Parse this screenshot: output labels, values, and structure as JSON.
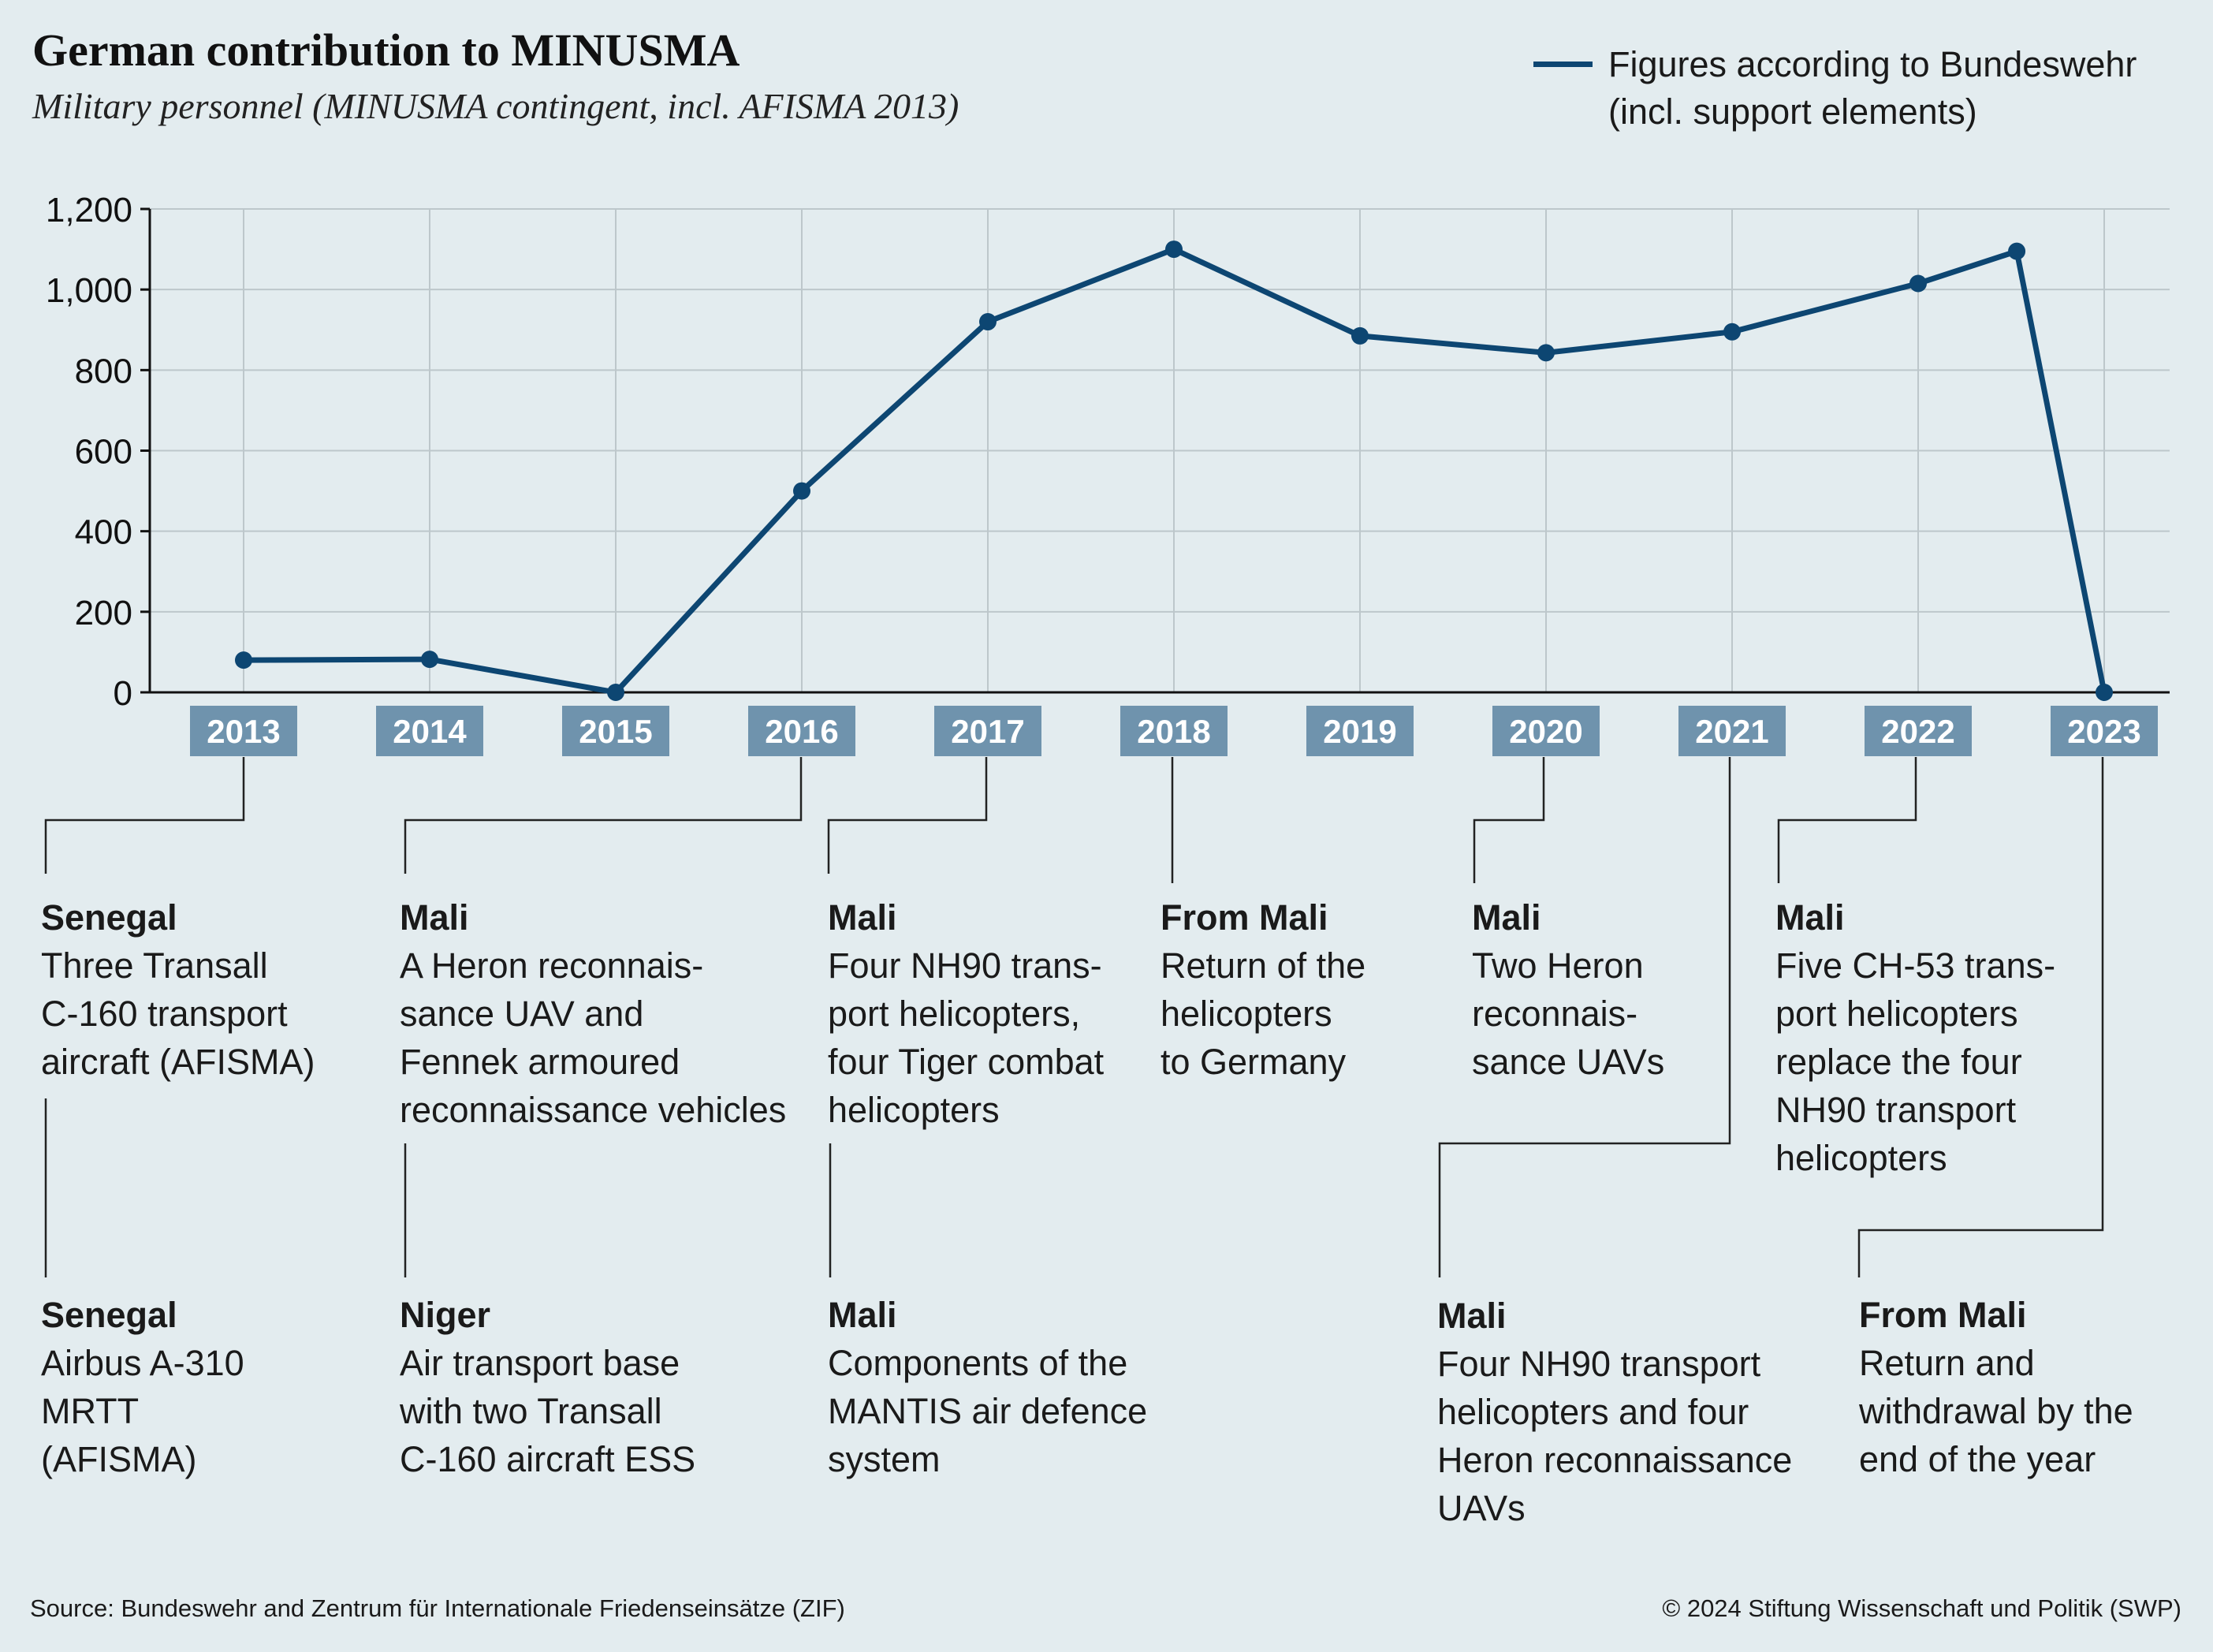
{
  "header": {
    "title": "German contribution to MINUSMA",
    "subtitle": "Military personnel (MINUSMA contingent, incl. AFISMA 2013)"
  },
  "legend": {
    "line1": "Figures according to Bundeswehr",
    "line2": "(incl. support elements)",
    "color": "#0d4672"
  },
  "chart_data": {
    "type": "line",
    "ylim": [
      0,
      1200
    ],
    "yticks": [
      "0",
      "200",
      "400",
      "600",
      "800",
      "1,000",
      "1,200"
    ],
    "ytick_values": [
      0,
      200,
      400,
      600,
      800,
      1000,
      1200
    ],
    "categories": [
      "2013",
      "2014",
      "2015",
      "2016",
      "2017",
      "2018",
      "2019",
      "2020",
      "2021",
      "2022",
      "2023"
    ],
    "grid": true,
    "series": [
      {
        "name": "Figures according to Bundeswehr (incl. support elements)",
        "color": "#0d4672",
        "points": [
          {
            "x": 2013.0,
            "y": 80
          },
          {
            "x": 2014.0,
            "y": 82
          },
          {
            "x": 2015.0,
            "y": 0
          },
          {
            "x": 2016.0,
            "y": 500
          },
          {
            "x": 2017.0,
            "y": 920
          },
          {
            "x": 2018.0,
            "y": 1100
          },
          {
            "x": 2019.0,
            "y": 885
          },
          {
            "x": 2020.0,
            "y": 843
          },
          {
            "x": 2021.0,
            "y": 895
          },
          {
            "x": 2022.0,
            "y": 1015
          },
          {
            "x": 2022.53,
            "y": 1095
          },
          {
            "x": 2023.0,
            "y": 0
          }
        ]
      }
    ]
  },
  "annotations": [
    {
      "head": "Senegal",
      "body": "Three Transall\nC-160 transport\naircraft (AFISMA)"
    },
    {
      "head": "Senegal",
      "body": "Airbus A-310\nMRTT\n(AFISMA)"
    },
    {
      "head": "Mali",
      "body": "A Heron reconnais-\nsance UAV and\nFennek armoured\nreconnaissance vehicles"
    },
    {
      "head": "Niger",
      "body": "Air transport base\nwith two Transall\nC-160 aircraft ESS"
    },
    {
      "head": "Mali",
      "body": "Four NH90 trans-\nport helicopters,\nfour Tiger combat\nhelicopters"
    },
    {
      "head": "Mali",
      "body": "Components of the\nMANTIS air defence\nsystem"
    },
    {
      "head": "From Mali",
      "body": "Return of the\nhelicopters\nto Germany"
    },
    {
      "head": "Mali",
      "body": "Two Heron\nreconnais-\nsance UAVs"
    },
    {
      "head": "Mali",
      "body": "Four NH90 transport\nhelicopters and four\nHeron reconnaissance\nUAVs"
    },
    {
      "head": "Mali",
      "body": "Five CH-53 trans-\nport helicopters\nreplace the four\nNH90 transport\nhelicopters"
    },
    {
      "head": "From Mali",
      "body": "Return and\nwithdrawal by the\nend of the year"
    }
  ],
  "footer": {
    "source": "Source: Bundeswehr and Zentrum für Internationale Friedenseinsätze (ZIF)",
    "copyright": "© 2024 Stiftung Wissenschaft und Politik (SWP)"
  }
}
